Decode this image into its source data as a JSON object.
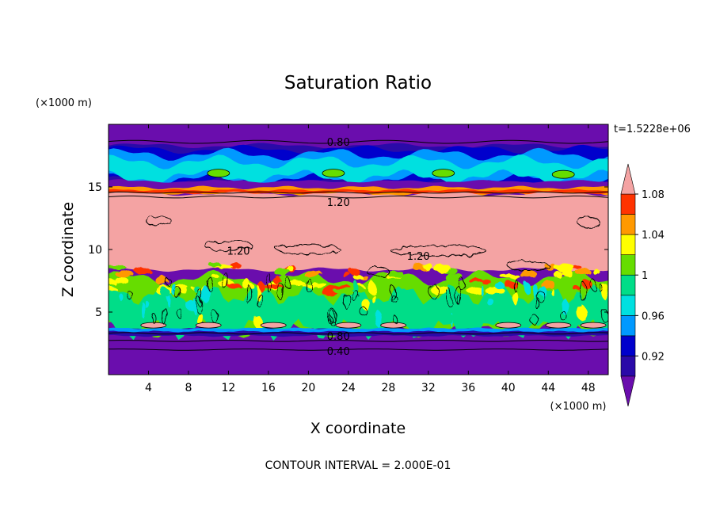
{
  "chart_data": {
    "type": "heatmap",
    "title": "Saturation Ratio",
    "xlabel": "X coordinate",
    "ylabel": "Z coordinate",
    "x_unit": "(×1000 m)",
    "y_unit": "(×1000 m)",
    "time_label": "t=1.5228e+06",
    "footer": "CONTOUR INTERVAL = 2.000E-01",
    "xlim": [
      0,
      50
    ],
    "ylim": [
      0,
      20
    ],
    "x_ticks": [
      4,
      8,
      12,
      16,
      20,
      24,
      28,
      32,
      36,
      40,
      44,
      48
    ],
    "x_tick_labels": [
      "4",
      "8",
      "12",
      "16",
      "20",
      "24",
      "28",
      "32",
      "36",
      "40",
      "44",
      "48"
    ],
    "y_ticks": [
      5,
      10,
      15
    ],
    "y_tick_labels": [
      "5",
      "10",
      "15"
    ],
    "colorbar": {
      "min": 0.9,
      "max": 1.1,
      "levels": [
        0.92,
        0.94,
        0.96,
        0.98,
        1.0,
        1.02,
        1.04,
        1.06,
        1.08
      ],
      "tick_labels": [
        "0.92",
        "0.96",
        "1",
        "1.04",
        "1.08"
      ],
      "tick_values": [
        0.92,
        0.96,
        1.0,
        1.04,
        1.08
      ],
      "colors": [
        "#6a0dad",
        "#2a0aa8",
        "#0000cc",
        "#0099ff",
        "#00e0e0",
        "#00dd88",
        "#66dd00",
        "#ffff00",
        "#ff9900",
        "#ff3300",
        "#f4a3a3"
      ]
    },
    "layers": [
      {
        "z_range": [
          0,
          3.1
        ],
        "value": "<0.92"
      },
      {
        "z_range": [
          3.1,
          3.6
        ],
        "value": "0.92-0.94"
      },
      {
        "z_range": [
          3.6,
          7.6
        ],
        "value": "0.98-1.04"
      },
      {
        "z_range": [
          7.6,
          8.6
        ],
        "value": "1.04-1.10"
      },
      {
        "z_range": [
          8.6,
          14.5
        ],
        "value": ">1.10"
      },
      {
        "z_range": [
          14.5,
          15.0
        ],
        "value": "1.04-1.10"
      },
      {
        "z_range": [
          15.0,
          15.4
        ],
        "value": "<0.92"
      },
      {
        "z_range": [
          15.4,
          17.6
        ],
        "value": "0.94-1.00"
      },
      {
        "z_range": [
          17.6,
          18.3
        ],
        "value": "0.92-0.94"
      },
      {
        "z_range": [
          18.3,
          20
        ],
        "value": "<0.92"
      }
    ],
    "contour_labels": [
      {
        "text": "0.80",
        "x": 23,
        "z": 18.6
      },
      {
        "text": "1.20",
        "x": 23,
        "z": 13.8
      },
      {
        "text": "1.20",
        "x": 13,
        "z": 9.9
      },
      {
        "text": "1.20",
        "x": 31,
        "z": 9.5
      },
      {
        "text": "0.80",
        "x": 23,
        "z": 3.1
      },
      {
        "text": "0.40",
        "x": 23,
        "z": 1.9
      }
    ]
  }
}
